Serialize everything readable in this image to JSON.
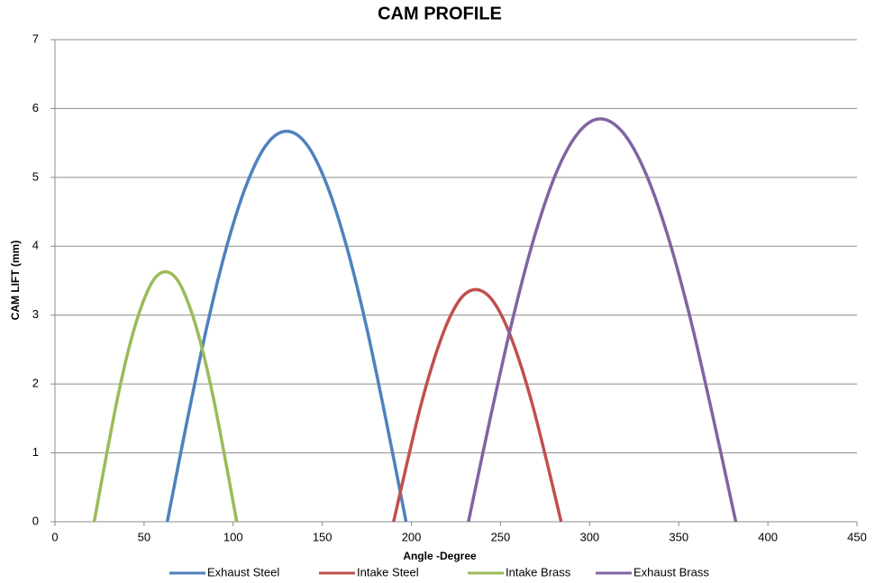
{
  "chart_data": {
    "type": "line",
    "title": "CAM PROFILE",
    "x_label": "Angle -Degree",
    "y_label": "CAM LIFT (mm)",
    "xlim": [
      0,
      450
    ],
    "xticks": [
      0,
      50,
      100,
      150,
      200,
      250,
      300,
      350,
      400,
      450
    ],
    "ylim": [
      0,
      7
    ],
    "yticks": [
      0,
      1,
      2,
      3,
      4,
      5,
      6,
      7
    ],
    "grid": true,
    "legend": "bottom",
    "series": [
      {
        "name": "Exhaust Steel",
        "color": "#4f81bd",
        "x": [
          63,
          74.2,
          85.3,
          96.5,
          107.7,
          118.8,
          130,
          141.2,
          152.3,
          163.5,
          174.7,
          185.8,
          197
        ],
        "values": [
          0,
          1.47,
          2.84,
          4.01,
          4.91,
          5.48,
          5.67,
          5.48,
          4.91,
          4.01,
          2.84,
          1.47,
          0
        ]
      },
      {
        "name": "Intake Steel",
        "color": "#c0504d",
        "x": [
          190,
          197.7,
          205.3,
          213,
          220.7,
          228.3,
          236,
          244,
          252,
          260,
          268,
          276,
          284
        ],
        "values": [
          0,
          0.87,
          1.69,
          2.38,
          2.92,
          3.26,
          3.37,
          3.26,
          2.92,
          2.38,
          1.69,
          0.87,
          0
        ]
      },
      {
        "name": "Intake Brass",
        "color": "#9bbb59",
        "x": [
          22,
          28.7,
          35.3,
          42,
          48.7,
          55.3,
          62,
          68.7,
          75.3,
          82,
          88.7,
          95.3,
          102
        ],
        "values": [
          0,
          0.94,
          1.82,
          2.57,
          3.14,
          3.51,
          3.63,
          3.51,
          3.14,
          2.57,
          1.82,
          0.94,
          0
        ]
      },
      {
        "name": "Exhaust Brass",
        "color": "#8064a2",
        "x": [
          232,
          244.3,
          256.7,
          269,
          281.3,
          293.7,
          306,
          318.7,
          331.3,
          344,
          356.7,
          369.3,
          382
        ],
        "values": [
          0,
          1.51,
          2.93,
          4.14,
          5.07,
          5.65,
          5.85,
          5.65,
          5.07,
          4.14,
          2.93,
          1.51,
          0
        ]
      }
    ]
  }
}
